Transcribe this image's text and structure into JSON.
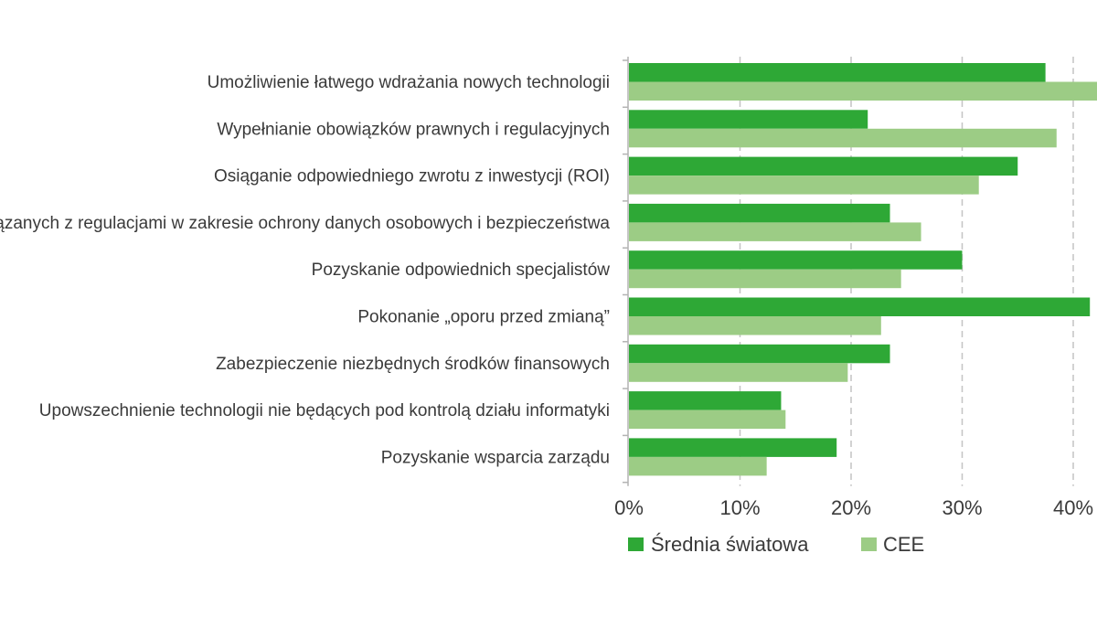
{
  "chart_data": {
    "type": "bar",
    "orientation": "horizontal",
    "categories": [
      "Umożliwienie łatwego wdrażania nowych technologii",
      "Wypełnianie obowiązków prawnych i regulacyjnych",
      "Osiąganie odpowiedniego zwrotu z inwestycji (ROI)",
      "Dostosowanie się do zmian związanych z regulacjami w zakresie ochrony danych osobowych i bezpieczeństwa",
      "Pozyskanie odpowiednich specjalistów",
      "Pokonanie „oporu przed zmianą”",
      "Zabezpieczenie niezbędnych środków finansowych",
      "Upowszechnienie technologii nie będących pod kontrolą działu informatyki",
      "Pozyskanie wsparcia zarządu"
    ],
    "series": [
      {
        "name": "Średnia światowa",
        "color": "#2ea836",
        "values": [
          37.5,
          21.5,
          35,
          23.5,
          30,
          41.5,
          23.5,
          13.7,
          18.7
        ]
      },
      {
        "name": "CEE",
        "color": "#9ccc85",
        "values": [
          43,
          38.5,
          31.5,
          26.3,
          24.5,
          22.7,
          19.7,
          14.1,
          12.4
        ]
      }
    ],
    "x_ticks": [
      "0%",
      "10%",
      "20%",
      "30%",
      "40%"
    ],
    "xlim": [
      0,
      45
    ],
    "grid": true,
    "legend_position": "bottom"
  }
}
